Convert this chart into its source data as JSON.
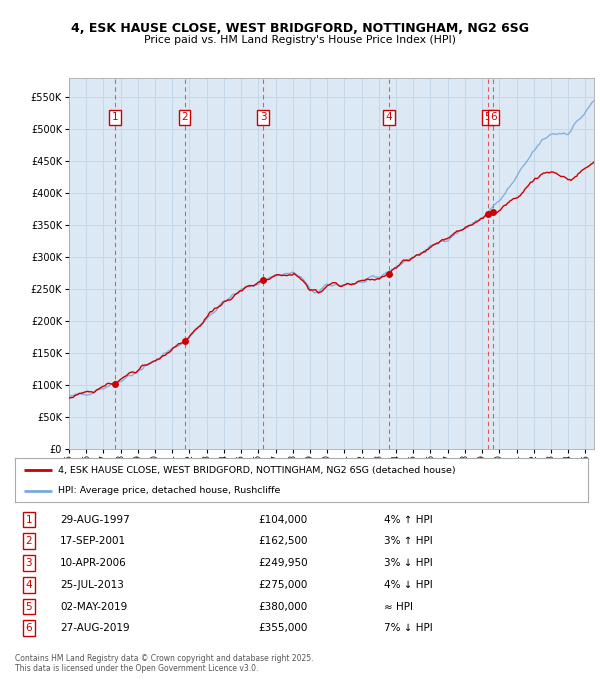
{
  "title1": "4, ESK HAUSE CLOSE, WEST BRIDGFORD, NOTTINGHAM, NG2 6SG",
  "title2": "Price paid vs. HM Land Registry's House Price Index (HPI)",
  "background_color": "#ffffff",
  "plot_bg_color": "#dce9f5",
  "grid_color": "#c8d8e8",
  "red_line_color": "#cc0000",
  "blue_line_color": "#7aaadd",
  "transactions": [
    {
      "num": 1,
      "date": "29-AUG-1997",
      "price": 104000,
      "rel": "4% ↑ HPI",
      "year": 1997.66
    },
    {
      "num": 2,
      "date": "17-SEP-2001",
      "price": 162500,
      "rel": "3% ↑ HPI",
      "year": 2001.71
    },
    {
      "num": 3,
      "date": "10-APR-2006",
      "price": 249950,
      "rel": "3% ↓ HPI",
      "year": 2006.28
    },
    {
      "num": 4,
      "date": "25-JUL-2013",
      "price": 275000,
      "rel": "4% ↓ HPI",
      "year": 2013.57
    },
    {
      "num": 5,
      "date": "02-MAY-2019",
      "price": 380000,
      "rel": "≈ HPI",
      "year": 2019.33
    },
    {
      "num": 6,
      "date": "27-AUG-2019",
      "price": 355000,
      "rel": "7% ↓ HPI",
      "year": 2019.66
    }
  ],
  "legend_label_red": "4, ESK HAUSE CLOSE, WEST BRIDGFORD, NOTTINGHAM, NG2 6SG (detached house)",
  "legend_label_blue": "HPI: Average price, detached house, Rushcliffe",
  "footer": "Contains HM Land Registry data © Crown copyright and database right 2025.\nThis data is licensed under the Open Government Licence v3.0.",
  "xmin": 1995.0,
  "xmax": 2025.5,
  "ymin": 0,
  "ymax": 580000,
  "yticks": [
    0,
    50000,
    100000,
    150000,
    200000,
    250000,
    300000,
    350000,
    400000,
    450000,
    500000,
    550000
  ]
}
